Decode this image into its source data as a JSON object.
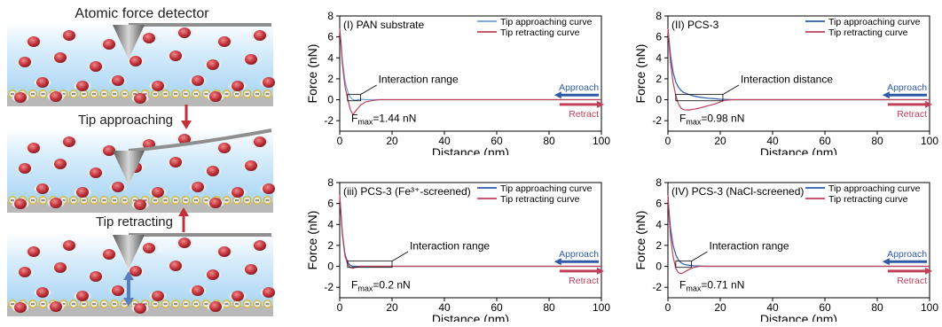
{
  "schematic": {
    "label_top": "Atomic force detector",
    "label_approach": "Tip approaching",
    "label_retract": "Tip retracting",
    "colors": {
      "water": "#bfe0f7",
      "molecule": "#c0313a",
      "tip": "#8a8a8a",
      "arrow_red": "#c0313a",
      "arrow_blue": "#5a7fc0",
      "charge_ring": "#e8c53a"
    }
  },
  "chart_data": [
    {
      "type": "line",
      "title": "(I) PAN substrate",
      "xlabel": "Distance (nm)",
      "ylabel": "Force (nN)",
      "xlim": [
        0,
        100
      ],
      "ylim": [
        -3,
        8
      ],
      "xticks": [
        0,
        20,
        40,
        60,
        80,
        100
      ],
      "yticks": [
        -2,
        0,
        2,
        4,
        6,
        8
      ],
      "legend_position": "top-right",
      "series": [
        {
          "name": "Tip approaching curve",
          "color": "#6f9fcf",
          "x": [
            0,
            0.5,
            1,
            2,
            3,
            4,
            5,
            6,
            8,
            10,
            15,
            20,
            40,
            60,
            80,
            100
          ],
          "y": [
            6.8,
            5.5,
            3.8,
            1.8,
            0.8,
            0.25,
            0.0,
            -0.05,
            0.05,
            0.0,
            0.0,
            0.0,
            0.0,
            0.0,
            0.0,
            0.0
          ]
        },
        {
          "name": "Tip retracting curve",
          "color": "#c0405a",
          "x": [
            0,
            0.5,
            1,
            2,
            3,
            4,
            5,
            6,
            8,
            10,
            12,
            15,
            20,
            40,
            60,
            80,
            100
          ],
          "y": [
            6.8,
            5.2,
            3.4,
            1.3,
            0.1,
            -0.9,
            -1.44,
            -1.1,
            -0.5,
            -0.2,
            -0.1,
            0.0,
            0.0,
            0.0,
            0.0,
            0.0,
            0.0
          ]
        }
      ],
      "annotations": {
        "range_label": "Interaction range",
        "fmax_prefix": "F",
        "fmax_sub": "max",
        "fmax_value": "=1.44 nN",
        "range_box_x": [
          3,
          8
        ]
      },
      "approach_label": "Approach",
      "retract_label": "Retract"
    },
    {
      "type": "line",
      "title": "(II) PCS-3",
      "xlabel": "Distance (nm)",
      "ylabel": "Force (nN)",
      "xlim": [
        0,
        100
      ],
      "ylim": [
        -3,
        8
      ],
      "xticks": [
        0,
        20,
        40,
        60,
        80,
        100
      ],
      "yticks": [
        -2,
        0,
        2,
        4,
        6,
        8
      ],
      "legend_position": "top-right",
      "series": [
        {
          "name": "Tip approaching curve",
          "color": "#2e5aa8",
          "x": [
            0,
            1,
            2,
            3,
            4,
            5,
            6,
            8,
            10,
            12,
            15,
            18,
            20,
            25,
            40,
            60,
            80,
            100
          ],
          "y": [
            6.8,
            4.2,
            2.6,
            1.7,
            1.2,
            0.9,
            0.7,
            0.5,
            0.35,
            0.25,
            0.15,
            0.1,
            0.05,
            0.0,
            0.0,
            0.0,
            0.0,
            0.0
          ]
        },
        {
          "name": "Tip retracting curve",
          "color": "#c0405a",
          "x": [
            0,
            1,
            2,
            3,
            4,
            5,
            6,
            8,
            10,
            12,
            15,
            18,
            20,
            22,
            25,
            40,
            60,
            80,
            100
          ],
          "y": [
            6.8,
            3.5,
            1.6,
            0.4,
            -0.4,
            -0.8,
            -0.95,
            -0.98,
            -0.9,
            -0.8,
            -0.6,
            -0.4,
            -0.2,
            -0.05,
            0.0,
            0.0,
            0.0,
            0.0,
            0.0
          ]
        }
      ],
      "annotations": {
        "range_label": "Interaction distance",
        "fmax_prefix": "F",
        "fmax_sub": "max",
        "fmax_value": "=0.98 nN",
        "range_box_x": [
          3,
          21
        ]
      },
      "approach_label": "Approach",
      "retract_label": "Retract"
    },
    {
      "type": "line",
      "title": "(iii) PCS-3 (Fe³⁺-screened)",
      "xlabel": "Distance (nm)",
      "ylabel": "Force (nN)",
      "xlim": [
        0,
        100
      ],
      "ylim": [
        -3,
        8
      ],
      "xticks": [
        0,
        20,
        40,
        60,
        80,
        100
      ],
      "yticks": [
        -2,
        0,
        2,
        4,
        6,
        8
      ],
      "legend_position": "top-right",
      "series": [
        {
          "name": "Tip approaching curve",
          "color": "#2e5aa8",
          "x": [
            0,
            0.5,
            1,
            2,
            3,
            4,
            5,
            8,
            20,
            40,
            60,
            80,
            100
          ],
          "y": [
            6.8,
            5.0,
            3.2,
            1.2,
            0.4,
            0.1,
            0.0,
            0.0,
            0.0,
            0.0,
            0.0,
            0.0,
            0.0
          ]
        },
        {
          "name": "Tip retracting curve",
          "color": "#c0405a",
          "x": [
            0,
            0.5,
            1,
            2,
            3,
            4,
            5,
            6,
            8,
            20,
            40,
            60,
            80,
            100
          ],
          "y": [
            6.8,
            4.8,
            3.0,
            1.0,
            0.2,
            -0.1,
            -0.2,
            -0.1,
            0.0,
            0.0,
            0.0,
            0.0,
            0.0,
            0.0
          ]
        }
      ],
      "annotations": {
        "range_label": "Interaction range",
        "fmax_prefix": "F",
        "fmax_sub": "max",
        "fmax_value": "=0.2 nN",
        "range_box_x": [
          3,
          20
        ]
      },
      "approach_label": "Approach",
      "retract_label": "Retract"
    },
    {
      "type": "line",
      "title": "(IV) PCS-3 (NaCl-screened)",
      "xlabel": "Distance (nm)",
      "ylabel": "Force (nN)",
      "xlim": [
        0,
        100
      ],
      "ylim": [
        -3,
        8
      ],
      "xticks": [
        0,
        20,
        40,
        60,
        80,
        100
      ],
      "yticks": [
        -2,
        0,
        2,
        4,
        6,
        8
      ],
      "legend_position": "top-right",
      "series": [
        {
          "name": "Tip approaching curve",
          "color": "#2e5aa8",
          "x": [
            0,
            0.5,
            1,
            2,
            3,
            4,
            5,
            6,
            8,
            10,
            15,
            20,
            40,
            60,
            80,
            100
          ],
          "y": [
            6.8,
            5.0,
            3.6,
            2.0,
            1.1,
            0.6,
            0.35,
            0.2,
            0.1,
            0.05,
            0.0,
            0.0,
            0.0,
            0.0,
            0.0,
            0.0
          ]
        },
        {
          "name": "Tip retracting curve",
          "color": "#c0405a",
          "x": [
            0,
            0.5,
            1,
            2,
            3,
            4,
            5,
            6,
            8,
            10,
            12,
            15,
            20,
            40,
            60,
            80,
            100
          ],
          "y": [
            6.8,
            4.6,
            2.8,
            0.9,
            -0.2,
            -0.6,
            -0.71,
            -0.6,
            -0.3,
            -0.1,
            0.0,
            0.0,
            0.0,
            0.0,
            0.0,
            0.0,
            0.0
          ]
        }
      ],
      "annotations": {
        "range_label": "Interaction range",
        "fmax_prefix": "F",
        "fmax_sub": "max",
        "fmax_value": "=0.71 nN",
        "range_box_x": [
          3,
          9
        ]
      },
      "approach_label": "Approach",
      "retract_label": "Retract"
    }
  ]
}
